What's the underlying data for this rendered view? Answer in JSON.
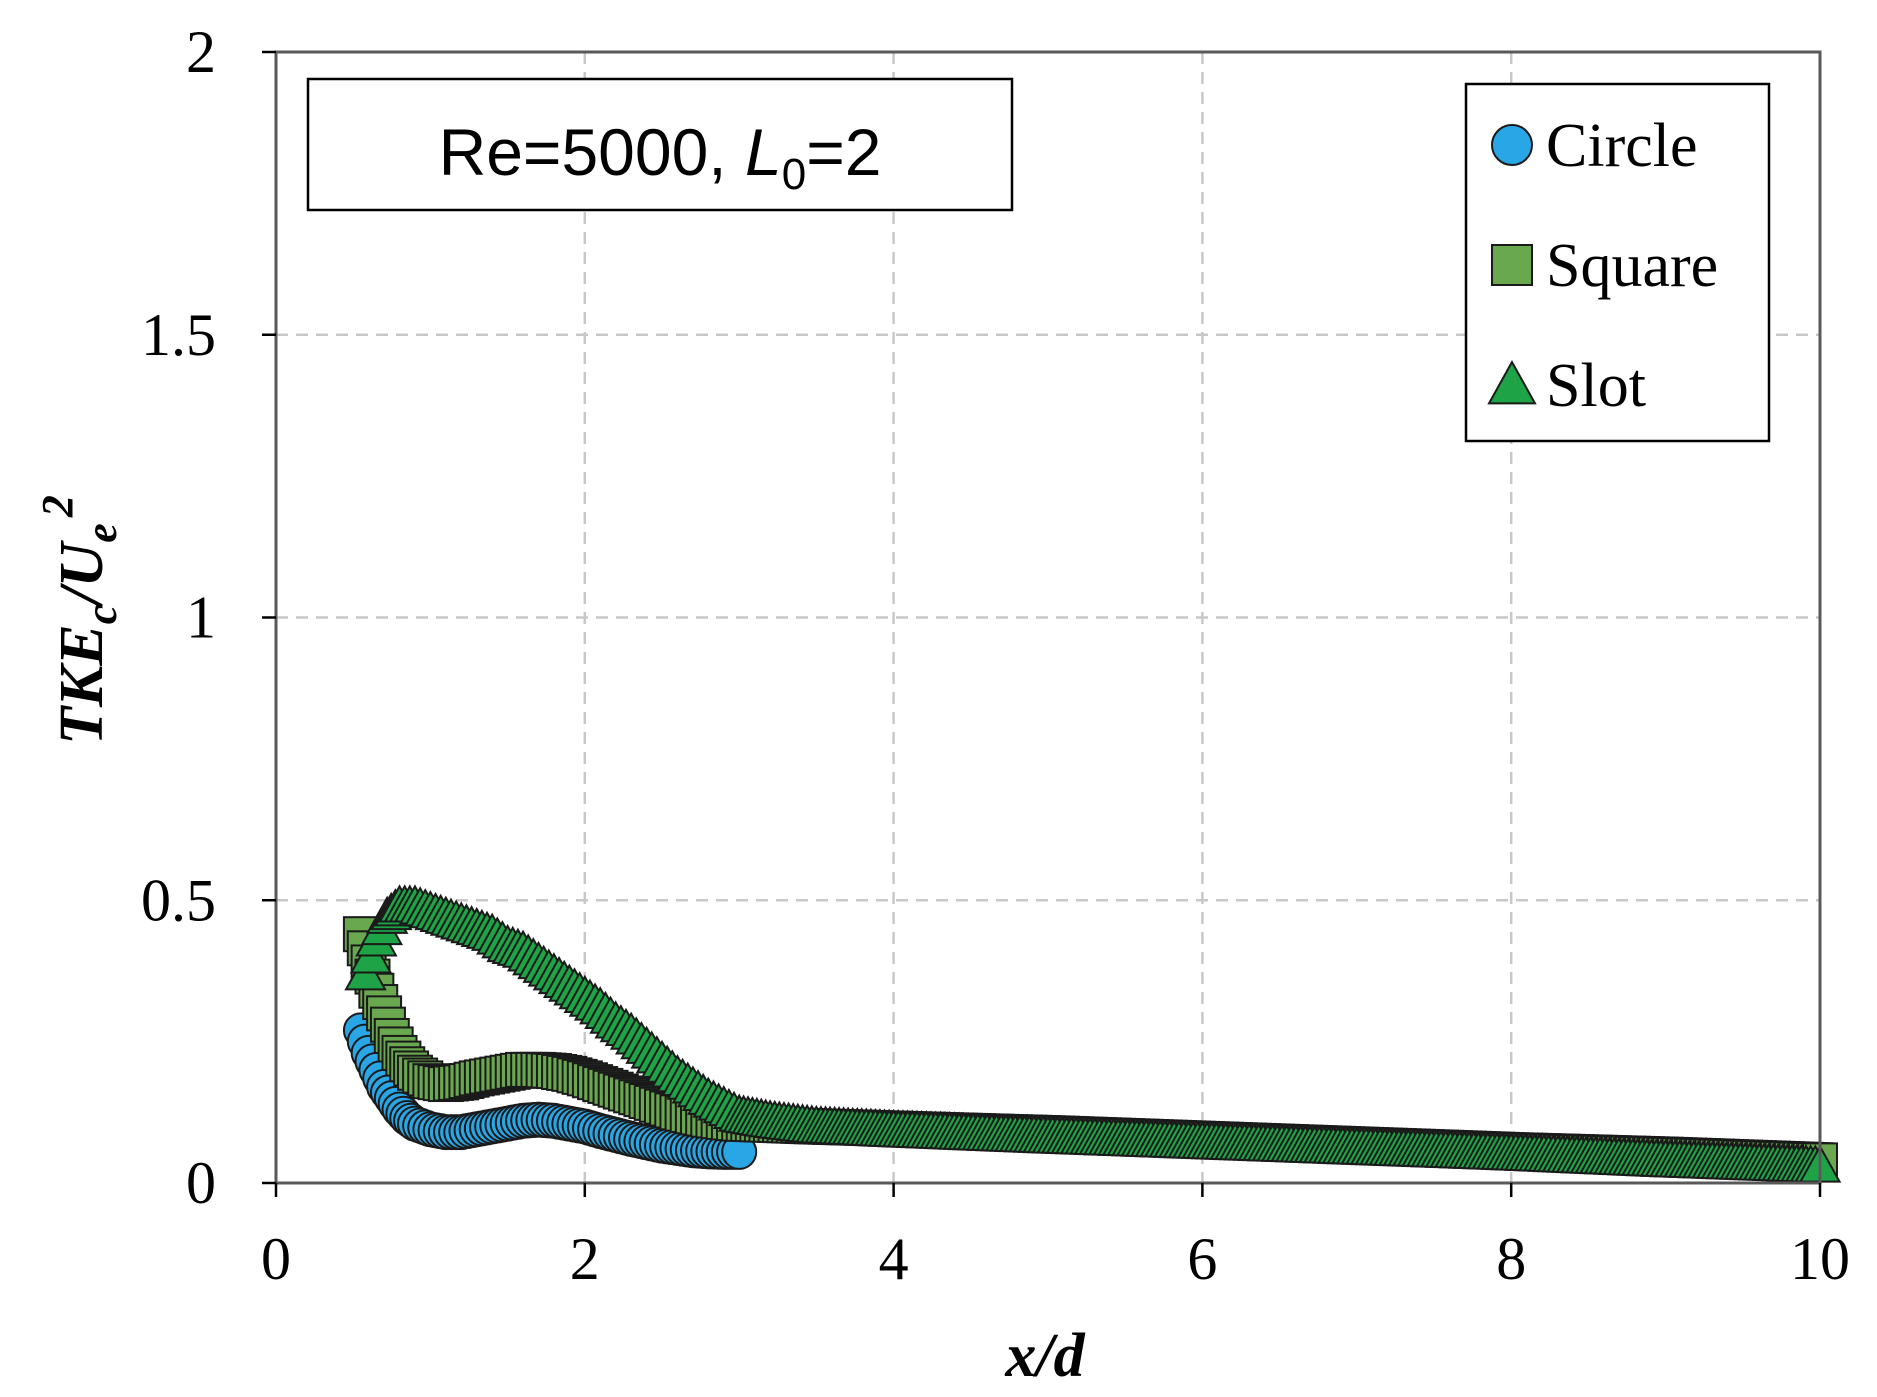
{
  "chart_data": {
    "type": "scatter",
    "xlabel": "x/d",
    "ylabel": {
      "main": "TKE",
      "sub1": "c",
      "mid": "/U",
      "sub2": "e",
      "sup": "2"
    },
    "xlim": [
      0,
      10
    ],
    "ylim": [
      0,
      2
    ],
    "xticks": [
      0,
      2,
      4,
      6,
      8,
      10
    ],
    "yticks": [
      0,
      0.5,
      1,
      1.5,
      2
    ],
    "ytick_labels": [
      "0",
      "0.5",
      "1",
      "1.5",
      "2"
    ],
    "grid": true,
    "legend_position": "top-right",
    "annotation": {
      "prefix": "Re=5000, ",
      "var": "L",
      "sub": "0",
      "suffix": "=2"
    },
    "series": [
      {
        "name": "Circle",
        "marker": "circle",
        "color": "#29a6e6",
        "x_range": [
          0.55,
          3.0
        ],
        "points": [
          [
            0.55,
            0.27
          ],
          [
            0.6,
            0.23
          ],
          [
            0.65,
            0.2
          ],
          [
            0.7,
            0.17
          ],
          [
            0.75,
            0.15
          ],
          [
            0.8,
            0.13
          ],
          [
            0.85,
            0.115
          ],
          [
            0.9,
            0.105
          ],
          [
            1.0,
            0.095
          ],
          [
            1.1,
            0.09
          ],
          [
            1.2,
            0.09
          ],
          [
            1.3,
            0.095
          ],
          [
            1.4,
            0.1
          ],
          [
            1.5,
            0.105
          ],
          [
            1.6,
            0.11
          ],
          [
            1.7,
            0.112
          ],
          [
            1.8,
            0.11
          ],
          [
            1.9,
            0.105
          ],
          [
            2.0,
            0.1
          ],
          [
            2.1,
            0.092
          ],
          [
            2.2,
            0.085
          ],
          [
            2.3,
            0.078
          ],
          [
            2.4,
            0.072
          ],
          [
            2.5,
            0.066
          ],
          [
            2.6,
            0.062
          ],
          [
            2.7,
            0.058
          ],
          [
            2.8,
            0.056
          ],
          [
            2.9,
            0.055
          ],
          [
            3.0,
            0.055
          ]
        ]
      },
      {
        "name": "Square",
        "marker": "square",
        "color": "#6aa84f",
        "x_range": [
          0.55,
          10.0
        ],
        "points": [
          [
            0.55,
            0.44
          ],
          [
            0.6,
            0.39
          ],
          [
            0.65,
            0.34
          ],
          [
            0.7,
            0.3
          ],
          [
            0.75,
            0.26
          ],
          [
            0.8,
            0.23
          ],
          [
            0.85,
            0.21
          ],
          [
            0.9,
            0.195
          ],
          [
            1.0,
            0.18
          ],
          [
            1.1,
            0.175
          ],
          [
            1.2,
            0.178
          ],
          [
            1.3,
            0.185
          ],
          [
            1.4,
            0.19
          ],
          [
            1.5,
            0.195
          ],
          [
            1.6,
            0.2
          ],
          [
            1.7,
            0.2
          ],
          [
            1.8,
            0.198
          ],
          [
            1.9,
            0.193
          ],
          [
            2.0,
            0.185
          ],
          [
            2.1,
            0.175
          ],
          [
            2.2,
            0.165
          ],
          [
            2.3,
            0.155
          ],
          [
            2.4,
            0.145
          ],
          [
            2.5,
            0.135
          ],
          [
            2.6,
            0.125
          ],
          [
            2.7,
            0.118
          ],
          [
            2.8,
            0.112
          ],
          [
            2.9,
            0.108
          ],
          [
            3.0,
            0.105
          ],
          [
            3.5,
            0.1
          ],
          [
            4.0,
            0.096
          ],
          [
            5.0,
            0.088
          ],
          [
            6.0,
            0.078
          ],
          [
            7.0,
            0.068
          ],
          [
            8.0,
            0.058
          ],
          [
            9.0,
            0.05
          ],
          [
            10.0,
            0.04
          ]
        ]
      },
      {
        "name": "Slot",
        "marker": "triangle",
        "color": "#1ea346",
        "x_range": [
          0.55,
          10.0
        ],
        "points": [
          [
            0.58,
            0.37
          ],
          [
            0.65,
            0.43
          ],
          [
            0.72,
            0.47
          ],
          [
            0.8,
            0.49
          ],
          [
            0.9,
            0.49
          ],
          [
            1.0,
            0.48
          ],
          [
            1.1,
            0.47
          ],
          [
            1.2,
            0.46
          ],
          [
            1.3,
            0.45
          ],
          [
            1.4,
            0.44
          ],
          [
            1.5,
            0.42
          ],
          [
            1.6,
            0.41
          ],
          [
            1.7,
            0.39
          ],
          [
            1.8,
            0.37
          ],
          [
            1.9,
            0.35
          ],
          [
            2.0,
            0.33
          ],
          [
            2.1,
            0.31
          ],
          [
            2.2,
            0.285
          ],
          [
            2.3,
            0.265
          ],
          [
            2.4,
            0.24
          ],
          [
            2.5,
            0.215
          ],
          [
            2.6,
            0.19
          ],
          [
            2.7,
            0.17
          ],
          [
            2.8,
            0.15
          ],
          [
            2.9,
            0.135
          ],
          [
            3.0,
            0.12
          ],
          [
            3.2,
            0.11
          ],
          [
            3.5,
            0.1
          ],
          [
            4.0,
            0.093
          ],
          [
            5.0,
            0.082
          ],
          [
            6.0,
            0.072
          ],
          [
            7.0,
            0.062
          ],
          [
            8.0,
            0.052
          ],
          [
            9.0,
            0.04
          ],
          [
            10.0,
            0.03
          ]
        ]
      }
    ]
  }
}
